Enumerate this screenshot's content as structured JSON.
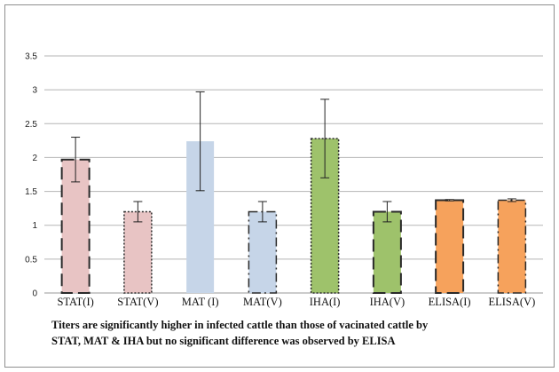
{
  "chart_data": {
    "type": "bar",
    "categories": [
      "STAT(I)",
      "STAT(V)",
      "MAT (I)",
      "MAT(V)",
      "IHA(I)",
      "IHA(V)",
      "ELISA(I)",
      "ELISA(V)"
    ],
    "values": [
      1.97,
      1.2,
      2.24,
      1.2,
      2.28,
      1.2,
      1.37,
      1.37
    ],
    "error_bars": [
      0.33,
      0.15,
      0.73,
      0.15,
      0.58,
      0.15,
      0.01,
      0.02
    ],
    "colors": [
      "#e8c4c4",
      "#e8c4c4",
      "#c6d5e8",
      "#c6d5e8",
      "#9ec26b",
      "#9ec26b",
      "#f6a25c",
      "#f6a25c"
    ],
    "border_styles": [
      "long-dash",
      "dotted",
      "none",
      "dash-dot",
      "dotted",
      "long-dash",
      "long-dash",
      "dash-dot"
    ],
    "yticks": [
      "0",
      "0.5",
      "1",
      "1.5",
      "2",
      "2.5",
      "3",
      "3.5"
    ],
    "ylim": [
      0,
      3.5
    ],
    "grid": true,
    "title": "",
    "xlabel": "",
    "ylabel": ""
  },
  "caption": {
    "line1": "Titers are significantly higher in infected cattle than those of vacinated cattle by",
    "line2": "STAT, MAT & IHA but no significant difference was observed by ELISA"
  }
}
